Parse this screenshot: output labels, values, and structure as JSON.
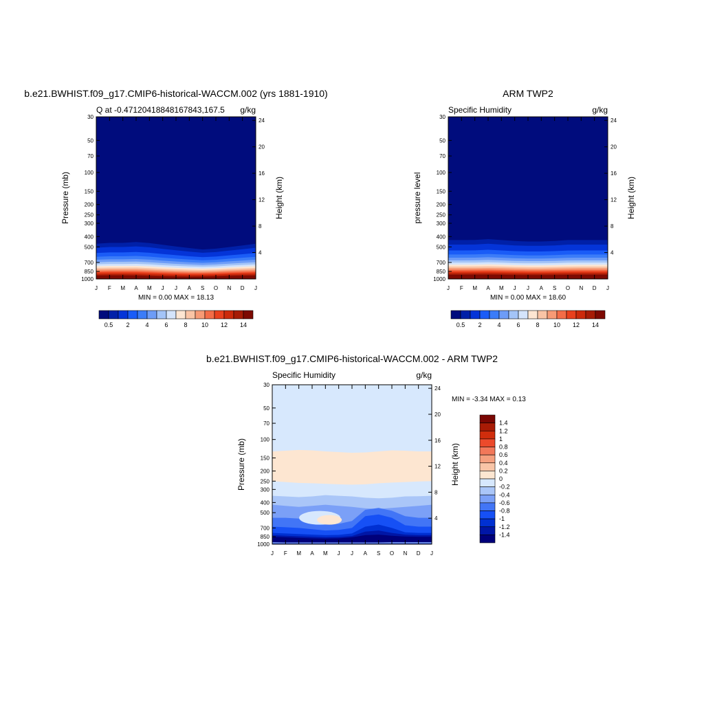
{
  "months": [
    "J",
    "F",
    "M",
    "A",
    "M",
    "J",
    "J",
    "A",
    "S",
    "O",
    "N",
    "D",
    "J"
  ],
  "pressure_ticks": [
    30,
    50,
    70,
    100,
    150,
    200,
    250,
    300,
    400,
    500,
    700,
    850,
    1000
  ],
  "height_ticks": [
    4,
    8,
    12,
    16,
    20,
    24
  ],
  "q_colors": [
    "#000c7d",
    "#0020a8",
    "#0434d8",
    "#1a5cf7",
    "#3b7cf8",
    "#6d9cf7",
    "#a3c4f8",
    "#d4e4fb",
    "#fde6d2",
    "#fac4a5",
    "#f79a75",
    "#f36c47",
    "#e9401d",
    "#cc2a0b",
    "#a61c06",
    "#7d0a02"
  ],
  "q_colorbar": {
    "labels": [
      "0.5",
      "2",
      "4",
      "6",
      "8",
      "10",
      "12",
      "14"
    ]
  },
  "panel1": {
    "title": "b.e21.BWHIST.f09_g17.CMIP6-historical-WACCM.002 (yrs 1881-1910)",
    "left_string": "Q at -0.47120418848167843,167.5",
    "right_string": "g/kg",
    "ylabel": "Pressure (mb)",
    "ylabel2": "Height (km)",
    "stats": "MIN =   0.00 MAX =  18.13"
  },
  "panel2": {
    "title": "ARM TWP2",
    "left_string": "Specific Humidity",
    "right_string": "g/kg",
    "ylabel": "pressure level",
    "ylabel2": "Height (km)",
    "stats": "MIN =   0.00 MAX =  18.60"
  },
  "panel3": {
    "title": "b.e21.BWHIST.f09_g17.CMIP6-historical-WACCM.002 - ARM TWP2",
    "left_string": "Specific Humidity",
    "right_string": "g/kg",
    "ylabel": "Pressure (mb)",
    "ylabel2": "Height (km)",
    "stats": "MIN =  -3.34 MAX =   0.13"
  },
  "diff_colors": [
    "#00007a",
    "#0016a6",
    "#0030d2",
    "#1650f5",
    "#4275f6",
    "#7ba0f7",
    "#aac6f8",
    "#d7e8fd",
    "#fde6d1",
    "#f9c5a7",
    "#f5a07f",
    "#f2785a",
    "#ec4a2b",
    "#d02d0c",
    "#a81b05",
    "#7a0703"
  ],
  "diff_colorbar": {
    "labels": [
      "1.4",
      "1.2",
      "1",
      "0.8",
      "0.6",
      "0.4",
      "0.2",
      "0",
      "-0.2",
      "-0.4",
      "-0.6",
      "-0.8",
      "-1",
      "-1.2",
      "-1.4"
    ]
  },
  "chart_data": [
    {
      "type": "heatmap",
      "title": "b.e21.BWHIST.f09_g17.CMIP6-historical-WACCM.002 (yrs 1881-1910)",
      "variable": "Q at -0.47120418848167843,167.5",
      "units": "g/kg",
      "x": [
        "J",
        "F",
        "M",
        "A",
        "M",
        "J",
        "J",
        "A",
        "S",
        "O",
        "N",
        "D",
        "J"
      ],
      "ylabel": "Pressure (mb)",
      "ylabel_right": "Height (km)",
      "ylim": [
        1000,
        30
      ],
      "y_scale": "log",
      "levels": [
        0.5,
        1,
        2,
        3,
        4,
        5,
        6,
        7,
        8,
        9,
        10,
        11,
        12,
        13,
        14
      ],
      "surface_q_by_month": [
        17.5,
        17.6,
        17.6,
        17.4,
        17.0,
        16.6,
        16.4,
        16.3,
        16.5,
        16.8,
        17.2,
        17.4,
        17.5
      ],
      "moist_top_pressure_by_month": [
        370,
        360,
        360,
        350,
        360,
        380,
        400,
        420,
        440,
        430,
        410,
        390,
        370
      ],
      "min": 0.0,
      "max": 18.13
    },
    {
      "type": "heatmap",
      "title": "ARM TWP2",
      "variable": "Specific Humidity",
      "units": "g/kg",
      "x": [
        "J",
        "F",
        "M",
        "A",
        "M",
        "J",
        "J",
        "A",
        "S",
        "O",
        "N",
        "D",
        "J"
      ],
      "ylabel": "pressure level",
      "ylabel_right": "Height (km)",
      "ylim": [
        1000,
        30
      ],
      "y_scale": "log",
      "levels": [
        0.5,
        1,
        2,
        3,
        4,
        5,
        6,
        7,
        8,
        9,
        10,
        11,
        12,
        13,
        14
      ],
      "surface_q_by_month": [
        18.2,
        18.2,
        18.3,
        18.3,
        18.2,
        18.0,
        17.9,
        17.9,
        18.0,
        18.1,
        18.2,
        18.2,
        18.2
      ],
      "moist_top_pressure_by_month": [
        330,
        330,
        330,
        320,
        330,
        340,
        345,
        345,
        340,
        330,
        330,
        330,
        330
      ],
      "min": 0.0,
      "max": 18.6
    },
    {
      "type": "heatmap",
      "title": "b.e21.BWHIST.f09_g17.CMIP6-historical-WACCM.002 - ARM TWP2",
      "variable": "Specific Humidity",
      "units": "g/kg",
      "x": [
        "J",
        "F",
        "M",
        "A",
        "M",
        "J",
        "J",
        "A",
        "S",
        "O",
        "N",
        "D",
        "J"
      ],
      "ylabel": "Pressure (mb)",
      "ylabel_right": "Height (km)",
      "ylim": [
        1000,
        30
      ],
      "y_scale": "log",
      "levels": [
        -1.4,
        -1.2,
        -1,
        -0.8,
        -0.6,
        -0.4,
        -0.2,
        0,
        0.2,
        0.4,
        0.6,
        0.8,
        1,
        1.2,
        1.4
      ],
      "band_positive_pressure_range": [
        130,
        260
      ],
      "near_surface_min_pressure": 800,
      "min": -3.34,
      "max": 0.13
    }
  ]
}
